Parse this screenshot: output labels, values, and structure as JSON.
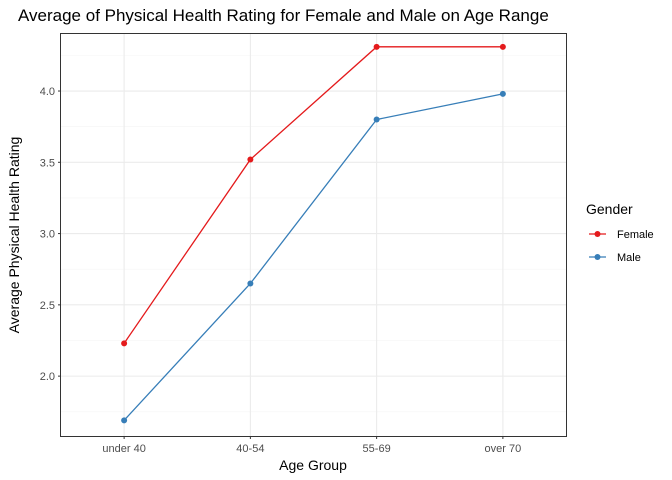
{
  "chart_data": {
    "type": "line",
    "title": "Average of Physical Health Rating for Female and Male on Age Range",
    "xlabel": "Age Group",
    "ylabel": "Average Physical Health Rating",
    "categories": [
      "under 40",
      "40-54",
      "55-69",
      "over 70"
    ],
    "yticks": [
      2.0,
      2.5,
      3.0,
      3.5,
      4.0
    ],
    "ylim": [
      1.58,
      4.4
    ],
    "grid": true,
    "legend": {
      "title": "Gender",
      "position": "right"
    },
    "series": [
      {
        "name": "Female",
        "color": "#e41a1c",
        "values": [
          2.23,
          3.52,
          4.31,
          4.31
        ]
      },
      {
        "name": "Male",
        "color": "#377eb8",
        "values": [
          1.69,
          2.65,
          3.8,
          3.98
        ]
      }
    ]
  }
}
